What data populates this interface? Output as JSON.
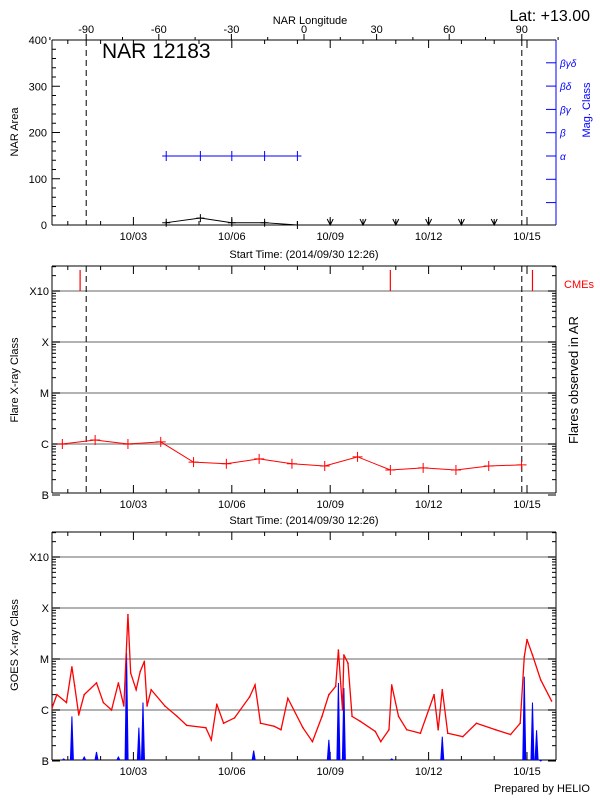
{
  "header": {
    "lat_label": "Lat: +13.00",
    "footer": "Prepared by HELIO"
  },
  "colors": {
    "area": "#000000",
    "mag_class": "#0000ff",
    "flares": "#ff0000",
    "cme": "#ff0000",
    "goes_long": "#ff0000",
    "goes_short": "#0000ff",
    "grid": "#999999"
  },
  "time_axis": {
    "start": "2014/09/30 12:26",
    "xlabel": "Start Time: (2014/09/30 12:26)",
    "ticks": [
      "10/03",
      "10/06",
      "10/09",
      "10/12",
      "10/15"
    ]
  },
  "chart_data": [
    {
      "type": "line",
      "title": "NAR 12183",
      "top_axis": {
        "label": "NAR Longitude",
        "ticks": [
          -90,
          -60,
          -30,
          0,
          30,
          60,
          90
        ]
      },
      "ylabel": "NAR Area",
      "ylim": [
        0,
        400
      ],
      "yticks": [
        0,
        100,
        200,
        300,
        400
      ],
      "right_axis": {
        "label": "Mag. Class",
        "classes": [
          "α",
          "β",
          "βγ",
          "βδ",
          "βγδ"
        ]
      },
      "limb_longitudes": [
        -90,
        90
      ],
      "area_series": {
        "x": [
          "10/04 00:00",
          "10/05 01:00",
          "10/06 00:00",
          "10/07 00:00",
          "10/08 00:00"
        ],
        "values": [
          5,
          15,
          5,
          5,
          0
        ]
      },
      "no_data_markers": [
        "10/09 00:00",
        "10/10 00:00",
        "10/11 00:00",
        "10/12 00:00",
        "10/13 00:00",
        "10/14 00:00"
      ],
      "mag_class_series": {
        "x": [
          "10/04 00:00",
          "10/05 01:00",
          "10/06 00:00",
          "10/07 00:00",
          "10/08 00:00"
        ],
        "values": [
          "α",
          "α",
          "α",
          "α",
          "α"
        ]
      }
    },
    {
      "type": "line",
      "ylabel": "Flare X-ray Class",
      "right_label": "Flares observed in AR",
      "yscale": "log",
      "yticks": [
        "B",
        "C",
        "M",
        "X",
        "X10"
      ],
      "grid": true,
      "cme_label": "CMEs",
      "cme_times": [
        "10/01 09:00",
        "10/10 20:00",
        "10/15 04:00"
      ],
      "flares": {
        "x": [
          "09/30 20:00",
          "10/01 20:00",
          "10/02 20:00",
          "10/03 20:00",
          "10/04 20:00",
          "10/05 20:00",
          "10/06 20:00",
          "10/07 20:00",
          "10/08 20:00",
          "10/09 20:00",
          "10/10 20:00",
          "10/11 20:00",
          "10/12 20:00",
          "10/13 20:00",
          "10/14 20:00"
        ],
        "values": [
          "C1.0",
          "C1.2",
          "C1.0",
          "C1.1",
          "B4.4",
          "B4.1",
          "B5.1",
          "B4.1",
          "B3.7",
          "B5.6",
          "B3.1",
          "B3.4",
          "B3.1",
          "B3.7",
          "B3.9"
        ]
      }
    },
    {
      "type": "line",
      "ylabel": "GOES X-ray Class",
      "yscale": "log",
      "yticks": [
        "B",
        "C",
        "M",
        "X",
        "X10"
      ],
      "grid": true,
      "long_channel": {
        "x": [
          "09/30 12:30",
          "09/30 16:00",
          "09/30 23:00",
          "10/01 03:00",
          "10/01 05:00",
          "10/01 08:00",
          "10/01 12:00",
          "10/01 21:00",
          "10/02 02:00",
          "10/02 08:00",
          "10/02 13:00",
          "10/02 17:00",
          "10/02 20:00",
          "10/02 22:00",
          "10/03 02:00",
          "10/03 05:00",
          "10/03 08:00",
          "10/03 10:00",
          "10/03 13:00",
          "10/03 23:00",
          "10/04 08:00",
          "10/04 15:00",
          "10/05 05:00",
          "10/05 09:00",
          "10/05 13:00",
          "10/05 18:00",
          "10/06 02:00",
          "10/06 13:00",
          "10/06 17:00",
          "10/06 21:00",
          "10/07 07:00",
          "10/07 12:00",
          "10/07 17:00",
          "10/08 04:00",
          "10/08 11:00",
          "10/08 18:00",
          "10/08 23:00",
          "10/09 04:00",
          "10/09 06:00",
          "10/09 09:00",
          "10/09 10:00",
          "10/09 13:00",
          "10/09 16:00",
          "10/09 22:00",
          "10/10 09:00",
          "10/10 13:00",
          "10/10 19:00",
          "10/10 21:00",
          "10/11 02:00",
          "10/11 08:00",
          "10/11 18:00",
          "10/12 04:00",
          "10/12 07:00",
          "10/12 10:00",
          "10/12 14:00",
          "10/13 01:00",
          "10/13 11:00",
          "10/14 01:00",
          "10/14 12:00",
          "10/14 19:00",
          "10/14 22:00",
          "10/15 00:00",
          "10/15 04:00",
          "10/15 10:00",
          "10/15 18:00"
        ],
        "values": [
          "C1.1",
          "C2.0",
          "C1.4",
          "C7.0",
          "C3.0",
          "B8.0",
          "C2.0",
          "C3.4",
          "C1.4",
          "C1.0",
          "C3.4",
          "C1.2",
          "M7.4",
          "C5.3",
          "C2.5",
          "C5.7",
          "C9.0",
          "C1.2",
          "C2.5",
          "C1.2",
          "B7.5",
          "B5.0",
          "B4.5",
          "B2.6",
          "C1.3",
          "B5.5",
          "B7.0",
          "C1.8",
          "C3.1",
          "B5.5",
          "B4.8",
          "B4.1",
          "C1.7",
          "B4.5",
          "B2.4",
          "B7.5",
          "C2.0",
          "C2.9",
          "M1.5",
          "C1.0",
          "M1.2",
          "C8.3",
          "B7.5",
          "B6.0",
          "B3.8",
          "B2.4",
          "B4.1",
          "C3.1",
          "B7.5",
          "B4.1",
          "B3.5",
          "C2.0",
          "B4.1",
          "C2.5",
          "B3.5",
          "B3.0",
          "B5.5",
          "B4.1",
          "B3.3",
          "B5.5",
          "M1.1",
          "M2.4",
          "M1.2",
          "C3.9",
          "C1.5"
        ]
      },
      "short_channel_peaks": {
        "x": [
          "09/30 21:00",
          "10/01 03:00",
          "10/01 12:00",
          "10/01 21:00",
          "10/02 13:00",
          "10/02 19:00",
          "10/03 04:00",
          "10/03 07:00",
          "10/06 16:00",
          "10/08 23:00",
          "10/09 06:00",
          "10/09 10:00",
          "10/10 21:00",
          "10/12 10:00",
          "10/14 22:00",
          "10/15 04:00",
          "10/15 07:00",
          "10/15 10:00"
        ],
        "values": [
          "B1.1",
          "B7.5",
          "B1.2",
          "B1.5",
          "B1.2",
          "M1.3",
          "B4.5",
          "C1.4",
          "B1.6",
          "B2.6",
          "C3.4",
          "C2.7",
          "B1.1",
          "B3.0",
          "C4.5",
          "C1.4",
          "B4.0",
          "B1.0"
        ]
      }
    }
  ]
}
